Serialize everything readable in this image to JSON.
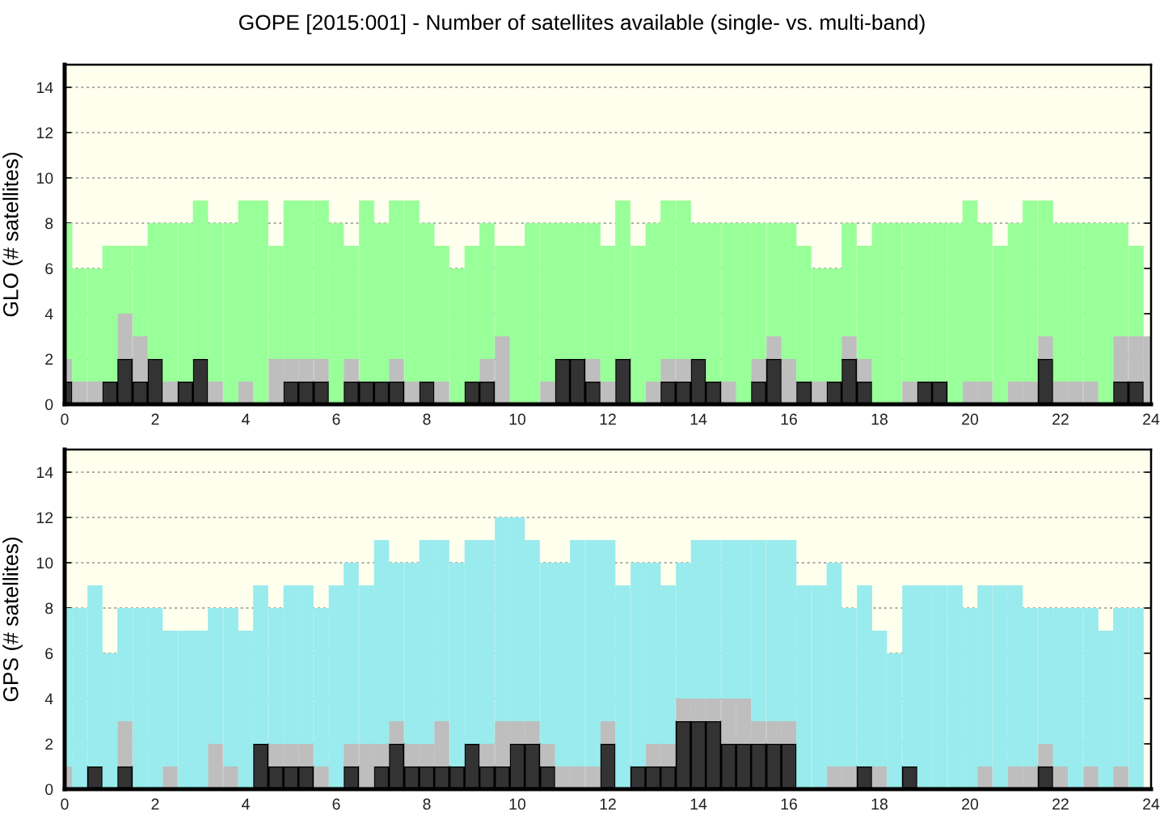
{
  "chart_data": [
    {
      "type": "bar",
      "stacked": true,
      "title": "GOPE [2015:001] - Number of satellites available (single- vs. multi-band)",
      "ylabel": "GLO (# satellites)",
      "x": [
        0,
        0.33,
        0.67,
        1,
        1.33,
        1.67,
        2,
        2.33,
        2.67,
        3,
        3.33,
        3.67,
        4,
        4.33,
        4.67,
        5,
        5.33,
        5.67,
        6,
        6.33,
        6.67,
        7,
        7.33,
        7.67,
        8,
        8.33,
        8.67,
        9,
        9.33,
        9.67,
        10,
        10.33,
        10.67,
        11,
        11.33,
        11.67,
        12,
        12.33,
        12.67,
        13,
        13.33,
        13.67,
        14,
        14.33,
        14.67,
        15,
        15.33,
        15.67,
        16,
        16.33,
        16.67,
        17,
        17.33,
        17.67,
        18,
        18.33,
        18.67,
        19,
        19.33,
        19.67,
        20,
        20.33,
        20.67,
        21,
        21.33,
        21.67,
        22,
        22.33,
        22.67,
        23,
        23.33,
        23.67,
        24
      ],
      "xlim": [
        0,
        24
      ],
      "xticks": [
        0,
        2,
        4,
        6,
        8,
        10,
        12,
        14,
        16,
        18,
        20,
        22,
        24
      ],
      "ylim": [
        0,
        15
      ],
      "yticks": [
        0,
        2,
        4,
        6,
        8,
        10,
        12,
        14
      ],
      "grid": "y",
      "series": [
        {
          "color": "#333333",
          "values": [
            1,
            0,
            0,
            1,
            2,
            1,
            2,
            0,
            1,
            2,
            0,
            0,
            0,
            0,
            0,
            1,
            1,
            1,
            0,
            1,
            1,
            1,
            1,
            0,
            1,
            0,
            0,
            1,
            1,
            0,
            0,
            0,
            0,
            2,
            2,
            1,
            0,
            2,
            0,
            0,
            1,
            1,
            2,
            1,
            0,
            0,
            1,
            2,
            0,
            1,
            0,
            1,
            2,
            1,
            0,
            0,
            0,
            1,
            1,
            0,
            0,
            0,
            0,
            0,
            0,
            2,
            0,
            0,
            0,
            0,
            1,
            1,
            0
          ]
        },
        {
          "color": "#bebebe",
          "values": [
            1,
            1,
            1,
            0,
            2,
            2,
            0,
            1,
            0,
            0,
            1,
            0,
            1,
            0,
            2,
            1,
            1,
            1,
            0,
            1,
            0,
            0,
            1,
            1,
            0,
            1,
            0,
            0,
            1,
            3,
            0,
            0,
            1,
            0,
            0,
            1,
            1,
            0,
            0,
            1,
            1,
            1,
            0,
            0,
            1,
            0,
            1,
            1,
            2,
            0,
            1,
            0,
            1,
            1,
            0,
            0,
            1,
            0,
            0,
            0,
            1,
            1,
            0,
            1,
            1,
            1,
            1,
            1,
            1,
            0,
            2,
            2,
            3
          ]
        },
        {
          "color": "#99ff99",
          "values": [
            6,
            5,
            5,
            6,
            3,
            4,
            6,
            7,
            7,
            7,
            7,
            8,
            8,
            9,
            5,
            7,
            7,
            7,
            8,
            5,
            8,
            7,
            7,
            8,
            7,
            6,
            6,
            6,
            6,
            4,
            7,
            8,
            7,
            6,
            6,
            6,
            6,
            7,
            7,
            7,
            7,
            7,
            6,
            7,
            7,
            8,
            6,
            5,
            6,
            6,
            5,
            5,
            5,
            5,
            8,
            8,
            7,
            7,
            7,
            8,
            8,
            7,
            7,
            7,
            8,
            6,
            7,
            7,
            7,
            8,
            5,
            4,
            0
          ]
        }
      ]
    },
    {
      "type": "bar",
      "stacked": true,
      "ylabel": "GPS (# satellites)",
      "x": [
        0,
        0.33,
        0.67,
        1,
        1.33,
        1.67,
        2,
        2.33,
        2.67,
        3,
        3.33,
        3.67,
        4,
        4.33,
        4.67,
        5,
        5.33,
        5.67,
        6,
        6.33,
        6.67,
        7,
        7.33,
        7.67,
        8,
        8.33,
        8.67,
        9,
        9.33,
        9.67,
        10,
        10.33,
        10.67,
        11,
        11.33,
        11.67,
        12,
        12.33,
        12.67,
        13,
        13.33,
        13.67,
        14,
        14.33,
        14.67,
        15,
        15.33,
        15.67,
        16,
        16.33,
        16.67,
        17,
        17.33,
        17.67,
        18,
        18.33,
        18.67,
        19,
        19.33,
        19.67,
        20,
        20.33,
        20.67,
        21,
        21.33,
        21.67,
        22,
        22.33,
        22.67,
        23,
        23.33,
        23.67,
        24
      ],
      "xlim": [
        0,
        24
      ],
      "xticks": [
        0,
        2,
        4,
        6,
        8,
        10,
        12,
        14,
        16,
        18,
        20,
        22,
        24
      ],
      "ylim": [
        0,
        15
      ],
      "yticks": [
        0,
        2,
        4,
        6,
        8,
        10,
        12,
        14
      ],
      "grid": "y",
      "series": [
        {
          "color": "#333333",
          "values": [
            0,
            0,
            1,
            0,
            1,
            0,
            0,
            0,
            0,
            0,
            0,
            0,
            0,
            2,
            1,
            1,
            1,
            0,
            0,
            1,
            0,
            1,
            2,
            1,
            1,
            1,
            1,
            2,
            1,
            1,
            2,
            2,
            1,
            0,
            0,
            0,
            2,
            0,
            1,
            1,
            1,
            3,
            3,
            3,
            2,
            2,
            2,
            2,
            2,
            0,
            0,
            0,
            0,
            1,
            0,
            0,
            1,
            0,
            0,
            0,
            0,
            0,
            0,
            0,
            0,
            1,
            0,
            0,
            0,
            0,
            0,
            0,
            0
          ]
        },
        {
          "color": "#bebebe",
          "values": [
            1,
            0,
            0,
            0,
            2,
            0,
            0,
            1,
            0,
            0,
            2,
            1,
            0,
            0,
            1,
            1,
            1,
            1,
            0,
            1,
            2,
            1,
            1,
            1,
            1,
            2,
            0,
            0,
            1,
            2,
            1,
            1,
            1,
            1,
            1,
            1,
            1,
            0,
            0,
            1,
            1,
            1,
            1,
            1,
            2,
            2,
            1,
            1,
            1,
            0,
            0,
            1,
            1,
            0,
            1,
            0,
            0,
            0,
            0,
            0,
            0,
            1,
            0,
            1,
            1,
            1,
            1,
            0,
            1,
            0,
            1,
            0,
            0
          ]
        },
        {
          "color": "#99ebed",
          "values": [
            7,
            8,
            8,
            6,
            5,
            8,
            8,
            6,
            7,
            7,
            6,
            7,
            7,
            7,
            6,
            7,
            7,
            7,
            9,
            8,
            7,
            9,
            7,
            8,
            9,
            8,
            9,
            9,
            9,
            9,
            9,
            8,
            8,
            9,
            10,
            10,
            8,
            9,
            9,
            8,
            7,
            6,
            7,
            7,
            7,
            7,
            8,
            8,
            8,
            9,
            9,
            9,
            7,
            8,
            6,
            6,
            8,
            9,
            9,
            9,
            8,
            8,
            9,
            8,
            7,
            6,
            7,
            8,
            7,
            7,
            7,
            8,
            0
          ]
        }
      ]
    }
  ]
}
